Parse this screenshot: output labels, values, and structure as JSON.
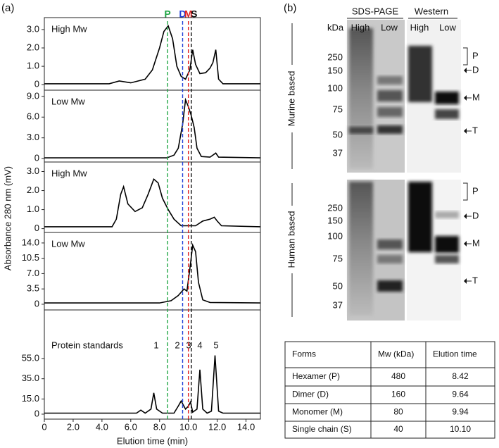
{
  "panel_a": {
    "label": "(a)",
    "ylabel": "Absorbance 280 nm (mV)",
    "xlabel": "Elution time (min)",
    "xlim": [
      0,
      15
    ],
    "xticks": [
      0,
      {
        "value": 2,
        "label": "2.0"
      },
      {
        "value": 4,
        "label": "4.0"
      },
      {
        "value": 6,
        "label": "6.0"
      },
      {
        "value": 8,
        "label": "8.0"
      },
      {
        "value": 10,
        "label": "10.0"
      },
      {
        "value": 12,
        "label": "12.0"
      },
      {
        "value": 14,
        "label": "14.0"
      }
    ],
    "markers": [
      {
        "label": "P",
        "color": "#22a646",
        "x": 8.55
      },
      {
        "label": "D",
        "color": "#2040d8",
        "x": 9.6
      },
      {
        "label": "M",
        "color": "#e02020",
        "x": 10.0
      },
      {
        "label": "S",
        "color": "#111111",
        "x": 10.2
      }
    ]
  },
  "chart_data": [
    {
      "type": "line",
      "annotation": "High Mw",
      "color": "#000000",
      "ylim": [
        -0.3,
        3.65
      ],
      "yticks": [
        0,
        {
          "value": 1,
          "label": "1.0"
        },
        {
          "value": 2,
          "label": "2.0"
        },
        {
          "value": 3,
          "label": "3.0"
        }
      ],
      "x": [
        0,
        4.5,
        5.2,
        6.0,
        7.0,
        7.5,
        8.0,
        8.3,
        8.6,
        8.9,
        9.2,
        9.5,
        9.8,
        10.1,
        10.3,
        10.5,
        10.8,
        11.2,
        11.5,
        11.7,
        11.9,
        12.1,
        12.4,
        15
      ],
      "values": [
        0.05,
        0.05,
        0.2,
        0.1,
        0.3,
        0.8,
        2.0,
        2.9,
        3.2,
        2.5,
        1.0,
        0.45,
        0.3,
        0.8,
        1.9,
        1.1,
        0.6,
        0.65,
        0.9,
        1.2,
        1.9,
        0.3,
        0.05,
        0.05
      ]
    },
    {
      "type": "line",
      "annotation": "Low  Mw",
      "color": "#000000",
      "ylim": [
        -0.5,
        9.9
      ],
      "yticks": [
        0,
        {
          "value": 3,
          "label": "3.0"
        },
        {
          "value": 6,
          "label": "6.0"
        },
        {
          "value": 9,
          "label": "9.0"
        }
      ],
      "x": [
        0,
        8.5,
        9.0,
        9.3,
        9.6,
        9.8,
        10.0,
        10.2,
        10.4,
        10.6,
        10.9,
        11.5,
        11.9,
        12.1,
        15
      ],
      "values": [
        0.1,
        0.1,
        0.5,
        1.5,
        5.0,
        8.5,
        7.5,
        6.2,
        4.5,
        1.5,
        0.3,
        0.2,
        0.8,
        0.2,
        0.1
      ]
    },
    {
      "type": "line",
      "annotation": "High Mw",
      "color": "#000000",
      "ylim": [
        -0.2,
        3.5
      ],
      "yticks": [
        0,
        {
          "value": 1,
          "label": "1.0"
        },
        {
          "value": 2,
          "label": "2.0"
        },
        {
          "value": 3,
          "label": "3.0"
        }
      ],
      "x": [
        0,
        4.7,
        5.0,
        5.3,
        5.5,
        5.8,
        6.3,
        6.8,
        7.2,
        7.6,
        7.9,
        8.2,
        8.6,
        9.0,
        9.5,
        10.5,
        11.0,
        11.5,
        11.8,
        12.0,
        12.3,
        15
      ],
      "values": [
        0.1,
        0.1,
        0.5,
        1.8,
        2.2,
        1.3,
        0.9,
        1.1,
        1.8,
        2.6,
        2.4,
        1.6,
        1.0,
        0.5,
        0.15,
        0.15,
        0.4,
        0.5,
        0.6,
        0.4,
        0.15,
        0.1
      ]
    },
    {
      "type": "line",
      "annotation": "Low Mw",
      "color": "#000000",
      "ylim": [
        -1.3,
        16.4
      ],
      "yticks": [
        0,
        3.5,
        {
          "value": 7,
          "label": "7.0"
        },
        10.5,
        {
          "value": 14,
          "label": "14.0"
        }
      ],
      "x": [
        0,
        8.0,
        8.8,
        9.3,
        9.7,
        9.9,
        10.1,
        10.3,
        10.5,
        10.7,
        11.0,
        11.5,
        15
      ],
      "values": [
        0.3,
        0.3,
        0.8,
        2.0,
        3.5,
        3.0,
        8.0,
        13.5,
        12.0,
        5.0,
        1.0,
        0.4,
        0.3
      ]
    },
    {
      "type": "line",
      "annotation": "Protein standards",
      "peak_labels": [
        "1",
        "2",
        "3",
        "4",
        "5"
      ],
      "color": "#000000",
      "ylim": [
        -4.9,
        103
      ],
      "yticks": [
        0,
        {
          "value": 15,
          "label": "15.0"
        },
        {
          "value": 35,
          "label": "35.0"
        },
        {
          "value": 55,
          "label": "55.0"
        }
      ],
      "x": [
        0,
        6.4,
        6.7,
        7.0,
        7.4,
        7.6,
        7.8,
        8.2,
        9.0,
        9.3,
        9.5,
        9.8,
        10.0,
        10.15,
        10.3,
        10.6,
        10.8,
        11.0,
        11.3,
        11.6,
        11.85,
        12.1,
        12.4,
        15
      ],
      "values": [
        1,
        1,
        4,
        1,
        5,
        21,
        5,
        1,
        1,
        8,
        13,
        5,
        8,
        12,
        2,
        5,
        44,
        5,
        1,
        3,
        58,
        3,
        1,
        1
      ]
    }
  ],
  "panel_b": {
    "label": "(b)",
    "methods": [
      "SDS-PAGE",
      "Western"
    ],
    "unit": "kDa",
    "lanes": [
      "High",
      "Low",
      "High",
      "Low"
    ],
    "blots": [
      {
        "name": "Murine based",
        "ladder": [
          "250",
          "150",
          "100",
          "75",
          "50",
          "37"
        ],
        "forms": [
          "P",
          "D",
          "M",
          "T"
        ]
      },
      {
        "name": "Human based",
        "ladder": [
          "250",
          "150",
          "100",
          "75",
          "50",
          "37"
        ],
        "forms": [
          "P",
          "D",
          "M",
          "T"
        ]
      }
    ]
  },
  "table": {
    "header": [
      "Forms",
      "Mw (kDa)",
      "Elution time"
    ],
    "rows": [
      [
        "Hexamer (P)",
        "480",
        "8.42"
      ],
      [
        "Dimer (D)",
        "160",
        "9.64"
      ],
      [
        "Monomer (M)",
        "80",
        "9.94"
      ],
      [
        "Single chain (S)",
        "40",
        "10.10"
      ]
    ]
  }
}
